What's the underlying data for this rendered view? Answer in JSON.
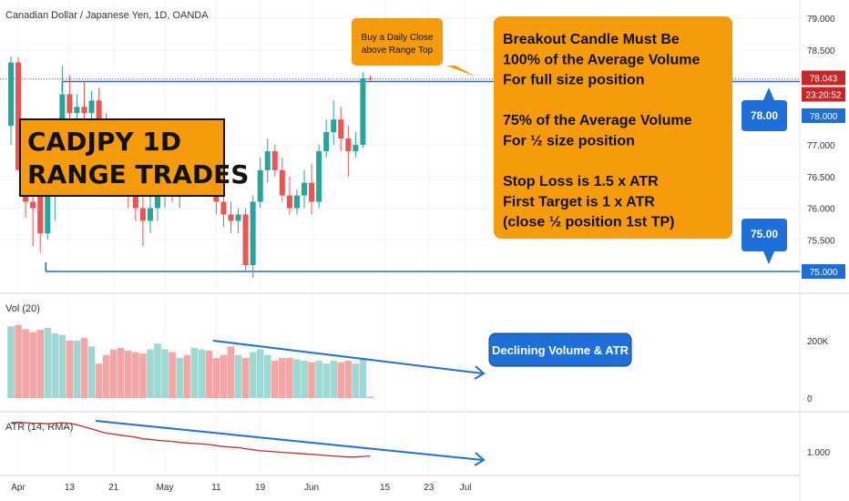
{
  "chart_data": {
    "type": "candlestick",
    "title": "Canadian Dollar / Japanese Yen, 1D, OANDA",
    "price_axis": {
      "ylim": [
        75.0,
        79.2
      ],
      "ticks": [
        {
          "label": "79.000",
          "v": 79.0
        },
        {
          "label": "78.500",
          "v": 78.5
        },
        {
          "label": "77.000",
          "v": 77.0
        },
        {
          "label": "76.500",
          "v": 76.5
        },
        {
          "label": "76.000",
          "v": 76.0
        },
        {
          "label": "75.500",
          "v": 75.5
        }
      ]
    },
    "price_badges": [
      {
        "label": "78.043",
        "color": "#c62828"
      },
      {
        "label": "23:20:52",
        "color": "#c62828"
      },
      {
        "label": "78.000",
        "color": "#1e6fd9"
      },
      {
        "label": "75.000",
        "color": "#1e6fd9"
      }
    ],
    "x_axis": {
      "ticks": [
        {
          "label": "Apr",
          "i": 1
        },
        {
          "label": "13",
          "i": 8
        },
        {
          "label": "21",
          "i": 14
        },
        {
          "label": "May",
          "i": 21
        },
        {
          "label": "11",
          "i": 28
        },
        {
          "label": "19",
          "i": 34
        },
        {
          "label": "Jun",
          "i": 41
        },
        {
          "label": "15",
          "i": 51
        },
        {
          "label": "23",
          "i": 57
        },
        {
          "label": "Jul",
          "i": 62
        }
      ]
    },
    "candles": [
      {
        "o": 77.3,
        "h": 78.4,
        "l": 77.0,
        "c": 78.3
      },
      {
        "o": 78.3,
        "h": 78.38,
        "l": 76.6,
        "c": 76.6
      },
      {
        "o": 76.6,
        "h": 77.2,
        "l": 75.85,
        "c": 76.1
      },
      {
        "o": 76.1,
        "h": 76.3,
        "l": 75.4,
        "c": 76.0
      },
      {
        "o": 76.2,
        "h": 76.4,
        "l": 75.3,
        "c": 75.6
      },
      {
        "o": 75.6,
        "h": 76.8,
        "l": 75.5,
        "c": 76.5
      },
      {
        "o": 76.4,
        "h": 76.9,
        "l": 75.8,
        "c": 76.8
      },
      {
        "o": 76.8,
        "h": 78.25,
        "l": 76.6,
        "c": 77.8
      },
      {
        "o": 77.8,
        "h": 78.1,
        "l": 77.1,
        "c": 77.5
      },
      {
        "o": 77.5,
        "h": 77.8,
        "l": 77.2,
        "c": 77.6
      },
      {
        "o": 77.6,
        "h": 78.0,
        "l": 77.3,
        "c": 77.5
      },
      {
        "o": 77.5,
        "h": 77.85,
        "l": 77.1,
        "c": 77.7
      },
      {
        "o": 77.7,
        "h": 77.9,
        "l": 77.1,
        "c": 77.3
      },
      {
        "o": 77.3,
        "h": 77.5,
        "l": 76.8,
        "c": 76.9
      },
      {
        "o": 76.9,
        "h": 77.2,
        "l": 76.6,
        "c": 76.7
      },
      {
        "o": 76.7,
        "h": 77.0,
        "l": 76.3,
        "c": 76.5
      },
      {
        "o": 76.5,
        "h": 76.8,
        "l": 76.0,
        "c": 76.2
      },
      {
        "o": 76.2,
        "h": 76.5,
        "l": 75.8,
        "c": 76.0
      },
      {
        "o": 76.0,
        "h": 76.3,
        "l": 75.4,
        "c": 75.8
      },
      {
        "o": 75.8,
        "h": 76.2,
        "l": 75.6,
        "c": 76.0
      },
      {
        "o": 76.0,
        "h": 76.6,
        "l": 75.8,
        "c": 76.3
      },
      {
        "o": 76.3,
        "h": 76.7,
        "l": 76.0,
        "c": 76.6
      },
      {
        "o": 76.6,
        "h": 76.8,
        "l": 76.1,
        "c": 76.3
      },
      {
        "o": 76.3,
        "h": 76.6,
        "l": 76.0,
        "c": 76.5
      },
      {
        "o": 76.5,
        "h": 76.9,
        "l": 76.2,
        "c": 76.3
      },
      {
        "o": 76.3,
        "h": 77.0,
        "l": 76.2,
        "c": 76.8
      },
      {
        "o": 76.8,
        "h": 77.3,
        "l": 76.6,
        "c": 77.0
      },
      {
        "o": 77.0,
        "h": 77.2,
        "l": 76.4,
        "c": 76.6
      },
      {
        "o": 76.6,
        "h": 76.8,
        "l": 75.9,
        "c": 76.1
      },
      {
        "o": 76.1,
        "h": 76.3,
        "l": 75.7,
        "c": 75.9
      },
      {
        "o": 75.9,
        "h": 76.1,
        "l": 75.6,
        "c": 75.8
      },
      {
        "o": 75.8,
        "h": 76.0,
        "l": 75.6,
        "c": 75.9
      },
      {
        "o": 75.9,
        "h": 76.0,
        "l": 75.0,
        "c": 75.1
      },
      {
        "o": 75.1,
        "h": 76.2,
        "l": 74.9,
        "c": 76.1
      },
      {
        "o": 76.1,
        "h": 76.8,
        "l": 76.0,
        "c": 76.6
      },
      {
        "o": 76.6,
        "h": 77.1,
        "l": 76.4,
        "c": 76.9
      },
      {
        "o": 76.9,
        "h": 77.0,
        "l": 76.5,
        "c": 76.6
      },
      {
        "o": 76.6,
        "h": 76.8,
        "l": 76.1,
        "c": 76.2
      },
      {
        "o": 76.2,
        "h": 76.5,
        "l": 75.9,
        "c": 76.0
      },
      {
        "o": 76.0,
        "h": 76.3,
        "l": 75.9,
        "c": 76.2
      },
      {
        "o": 76.2,
        "h": 76.6,
        "l": 76.0,
        "c": 76.4
      },
      {
        "o": 76.4,
        "h": 76.7,
        "l": 75.9,
        "c": 76.1
      },
      {
        "o": 76.1,
        "h": 77.0,
        "l": 76.0,
        "c": 76.9
      },
      {
        "o": 76.9,
        "h": 77.4,
        "l": 76.8,
        "c": 77.2
      },
      {
        "o": 77.2,
        "h": 77.7,
        "l": 77.0,
        "c": 77.4
      },
      {
        "o": 77.4,
        "h": 77.6,
        "l": 76.9,
        "c": 77.1
      },
      {
        "o": 77.1,
        "h": 77.3,
        "l": 76.5,
        "c": 76.9
      },
      {
        "o": 76.9,
        "h": 77.2,
        "l": 76.8,
        "c": 77.0
      },
      {
        "o": 77.0,
        "h": 78.15,
        "l": 76.95,
        "c": 78.05
      },
      {
        "o": 78.05,
        "h": 78.1,
        "l": 78.0,
        "c": 78.04
      }
    ],
    "volume_panel": {
      "title": "Vol (20)",
      "ylim": [
        0,
        300000
      ],
      "ticks": [
        {
          "label": "200K",
          "v": 200000
        },
        {
          "label": "0",
          "v": 0
        }
      ],
      "values": [
        250000,
        255000,
        240000,
        230000,
        238000,
        245000,
        225000,
        220000,
        200000,
        200000,
        210000,
        180000,
        120000,
        150000,
        170000,
        175000,
        165000,
        160000,
        155000,
        170000,
        190000,
        170000,
        160000,
        140000,
        150000,
        175000,
        170000,
        165000,
        140000,
        150000,
        180000,
        150000,
        140000,
        160000,
        170000,
        150000,
        130000,
        140000,
        140000,
        135000,
        130000,
        125000,
        130000,
        120000,
        130000,
        125000,
        130000,
        120000,
        140000,
        5000
      ]
    },
    "atr_panel": {
      "title": "ATR (14, RMA)",
      "ylim": [
        0.65,
        1.68
      ],
      "ticks": [
        {
          "label": "1.000",
          "v": 1.0
        }
      ],
      "values": [
        1.56,
        1.57,
        1.56,
        1.55,
        1.55,
        1.54,
        1.55,
        1.56,
        1.55,
        1.52,
        1.48,
        1.44,
        1.4,
        1.36,
        1.34,
        1.32,
        1.3,
        1.28,
        1.25,
        1.24,
        1.22,
        1.21,
        1.2,
        1.18,
        1.17,
        1.16,
        1.15,
        1.14,
        1.12,
        1.1,
        1.09,
        1.08,
        1.06,
        1.04,
        1.02,
        1.01,
        1.0,
        0.99,
        0.98,
        0.97,
        0.96,
        0.95,
        0.94,
        0.93,
        0.92,
        0.91,
        0.9,
        0.9,
        0.91,
        0.92
      ]
    },
    "range": {
      "top": 78.0,
      "bottom": 75.0,
      "top_label": "78.00",
      "bottom_label": "75.00"
    },
    "colors": {
      "up": "#26a69a",
      "down": "#ef5350",
      "up_vol": "#9ed8d2",
      "down_vol": "#f5a6a4",
      "atr": "#c62828",
      "line": "#1e6fd9",
      "callout": "#f59b0c"
    },
    "annotations": {
      "title_box": [
        "CADJPY 1D",
        "RANGE TRADES"
      ],
      "callout_small": [
        "Buy a Daily Close",
        "above Range Top"
      ],
      "callout_big": [
        "Breakout Candle Must Be",
        "100% of the Average Volume",
        "For full size position",
        "",
        "75% of the Average Volume",
        "For ½ size position",
        "",
        "Stop Loss is 1.5 x ATR",
        "First Target is 1 x ATR",
        "(close ½ position 1st TP)"
      ],
      "declining": "Declining Volume & ATR"
    }
  }
}
